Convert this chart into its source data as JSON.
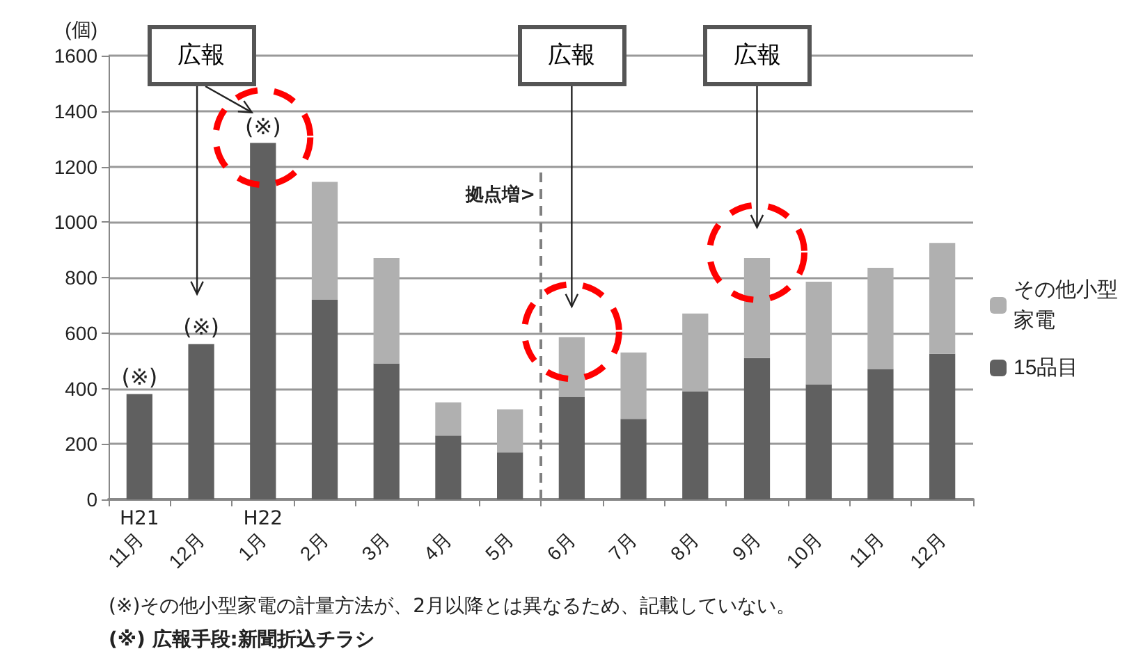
{
  "chart_data": {
    "type": "bar",
    "stacked": true,
    "ylabel": "(個)",
    "categories": [
      "11月",
      "12月",
      "1月",
      "2月",
      "3月",
      "4月",
      "5月",
      "6月",
      "7月",
      "8月",
      "9月",
      "10月",
      "11月",
      "12月"
    ],
    "series": [
      {
        "name": "15品目",
        "color": "#606060",
        "values": [
          380,
          560,
          1285,
          720,
          490,
          230,
          170,
          370,
          290,
          390,
          510,
          415,
          470,
          525
        ]
      },
      {
        "name": "その他小型家電",
        "color": "#b0b0b0",
        "values": [
          null,
          null,
          null,
          425,
          380,
          120,
          155,
          215,
          240,
          280,
          360,
          370,
          365,
          400
        ]
      }
    ],
    "ylim": [
      0,
      1600
    ],
    "yticks": [
      0,
      200,
      400,
      600,
      800,
      1000,
      1200,
      1400,
      1600
    ],
    "grid": "y",
    "legend": "right",
    "ref_lines": [
      {
        "axis": "x",
        "value": "6月",
        "label": "拠点増>",
        "color": "#808080",
        "line_style": "dashed"
      }
    ],
    "annotations": [
      "H21",
      "H22",
      {
        "text": "(※)",
        "x": "11月",
        "y": 380
      },
      {
        "text": "(※)",
        "x": "12月",
        "y": 560
      },
      {
        "text": "(※)",
        "x": "1月",
        "y": 1285
      },
      "広報",
      "広報",
      "広報",
      "(※)その他小型家電の計量方法が、2月以降とは異なるため、記載していない。",
      "(※) 広報手段:新聞折込チラシ"
    ]
  }
}
